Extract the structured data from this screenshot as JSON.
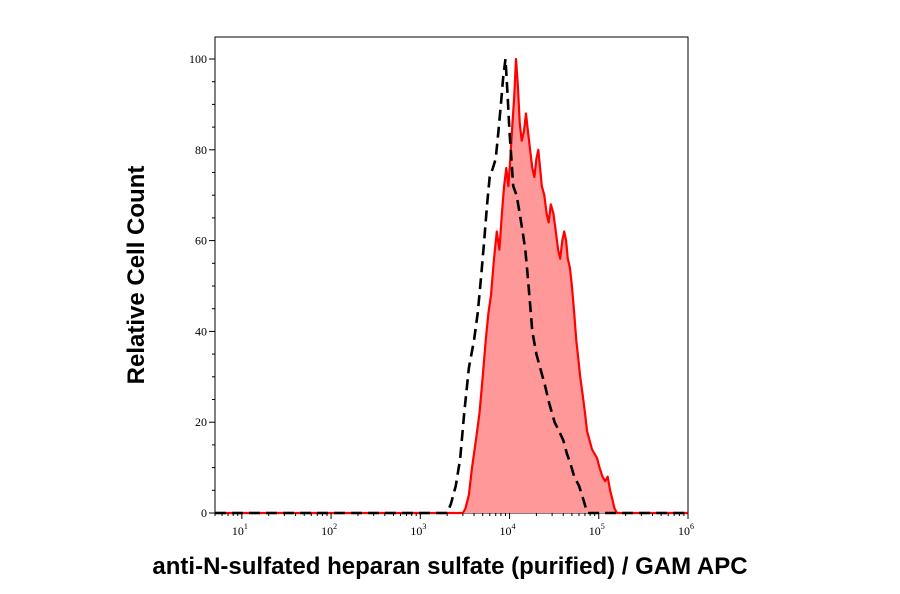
{
  "chart_data": {
    "type": "area",
    "title": "",
    "xlabel": "anti-N-sulfated heparan sulfate (purified) / GAM APC",
    "ylabel": "Relative Cell Count",
    "xscale": "log",
    "xlim": [
      5,
      1000000
    ],
    "ylim": [
      0,
      105
    ],
    "x_ticks": [
      {
        "base": "10",
        "exp": "1"
      },
      {
        "base": "10",
        "exp": "2"
      },
      {
        "base": "10",
        "exp": "3"
      },
      {
        "base": "10",
        "exp": "4"
      },
      {
        "base": "10",
        "exp": "5"
      },
      {
        "base": "10",
        "exp": "6"
      }
    ],
    "y_ticks": [
      "0",
      "20",
      "40",
      "60",
      "80",
      "100"
    ],
    "grid": false,
    "legend": null,
    "colors": {
      "stained_line": "#ff0000",
      "stained_fill": "#ff9999",
      "control_line": "#000000"
    },
    "series": [
      {
        "style": "dashed-black-line",
        "points": [
          [
            5,
            0
          ],
          [
            1000,
            0
          ],
          [
            2000,
            0
          ],
          [
            2200,
            2
          ],
          [
            2500,
            6
          ],
          [
            2800,
            12
          ],
          [
            3100,
            22
          ],
          [
            3500,
            32
          ],
          [
            4000,
            38
          ],
          [
            4400,
            44
          ],
          [
            4800,
            52
          ],
          [
            5200,
            60
          ],
          [
            5600,
            68
          ],
          [
            6000,
            74
          ],
          [
            6500,
            76
          ],
          [
            7000,
            78
          ],
          [
            7500,
            84
          ],
          [
            8000,
            90
          ],
          [
            8500,
            96
          ],
          [
            9000,
            100
          ],
          [
            9500,
            92
          ],
          [
            10000,
            84
          ],
          [
            10500,
            78
          ],
          [
            11000,
            72
          ],
          [
            12000,
            70
          ],
          [
            13000,
            66
          ],
          [
            14000,
            62
          ],
          [
            15000,
            58
          ],
          [
            16000,
            52
          ],
          [
            17000,
            46
          ],
          [
            18000,
            40
          ],
          [
            20000,
            35
          ],
          [
            22000,
            32
          ],
          [
            25000,
            28
          ],
          [
            28000,
            24
          ],
          [
            32000,
            20
          ],
          [
            36000,
            18
          ],
          [
            40000,
            16
          ],
          [
            44000,
            13
          ],
          [
            48000,
            11
          ],
          [
            53000,
            8
          ],
          [
            60000,
            6
          ],
          [
            67000,
            3
          ],
          [
            72000,
            1
          ],
          [
            76000,
            0
          ],
          [
            1000000,
            0
          ]
        ]
      },
      {
        "style": "solid-red-filled",
        "points": [
          [
            5,
            0
          ],
          [
            3000,
            0
          ],
          [
            3200,
            1
          ],
          [
            3500,
            4
          ],
          [
            3800,
            10
          ],
          [
            4200,
            16
          ],
          [
            4600,
            22
          ],
          [
            5000,
            30
          ],
          [
            5400,
            38
          ],
          [
            5800,
            44
          ],
          [
            6200,
            48
          ],
          [
            6700,
            56
          ],
          [
            7200,
            62
          ],
          [
            7700,
            58
          ],
          [
            8200,
            66
          ],
          [
            8700,
            72
          ],
          [
            9200,
            76
          ],
          [
            9700,
            72
          ],
          [
            10200,
            78
          ],
          [
            10800,
            86
          ],
          [
            11300,
            92
          ],
          [
            11800,
            100
          ],
          [
            12400,
            94
          ],
          [
            13000,
            86
          ],
          [
            13700,
            82
          ],
          [
            14500,
            84
          ],
          [
            15300,
            88
          ],
          [
            16100,
            84
          ],
          [
            17000,
            80
          ],
          [
            18000,
            76
          ],
          [
            19000,
            74
          ],
          [
            20000,
            78
          ],
          [
            21000,
            80
          ],
          [
            22000,
            76
          ],
          [
            23000,
            72
          ],
          [
            24500,
            70
          ],
          [
            26000,
            66
          ],
          [
            27500,
            64
          ],
          [
            29000,
            68
          ],
          [
            31000,
            66
          ],
          [
            33000,
            62
          ],
          [
            35000,
            58
          ],
          [
            37000,
            56
          ],
          [
            39000,
            60
          ],
          [
            41000,
            62
          ],
          [
            43000,
            60
          ],
          [
            45000,
            56
          ],
          [
            47500,
            54
          ],
          [
            50000,
            50
          ],
          [
            53000,
            44
          ],
          [
            56000,
            38
          ],
          [
            59000,
            34
          ],
          [
            62000,
            30
          ],
          [
            66000,
            26
          ],
          [
            70000,
            22
          ],
          [
            74000,
            18
          ],
          [
            79000,
            16
          ],
          [
            84000,
            14
          ],
          [
            90000,
            13
          ],
          [
            96000,
            12
          ],
          [
            102000,
            10
          ],
          [
            110000,
            8
          ],
          [
            118000,
            7
          ],
          [
            126000,
            8
          ],
          [
            134000,
            5
          ],
          [
            142000,
            3
          ],
          [
            150000,
            1
          ],
          [
            160000,
            0
          ],
          [
            1000000,
            0
          ]
        ]
      }
    ]
  }
}
